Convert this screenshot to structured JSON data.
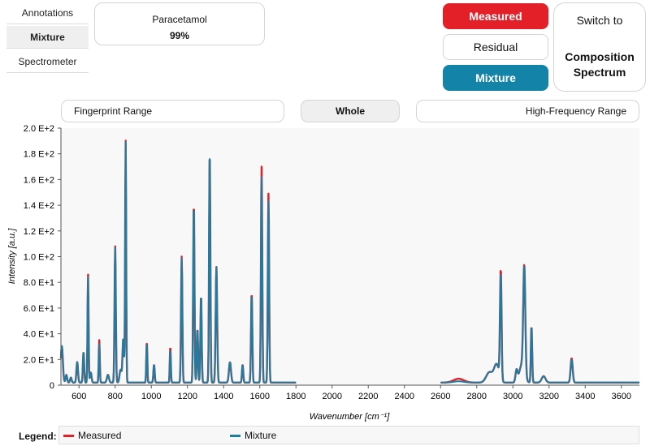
{
  "sidebar": {
    "tabs": [
      {
        "label": "Annotations",
        "active": false
      },
      {
        "label": "Mixture",
        "active": true
      },
      {
        "label": "Spectrometer",
        "active": false
      }
    ]
  },
  "component": {
    "name": "Paracetamol",
    "percent": "99%"
  },
  "toggles": {
    "measured": "Measured",
    "residual": "Residual",
    "mixture": "Mixture"
  },
  "switch_button": {
    "line1": "Switch to",
    "line2": "Composition Spectrum"
  },
  "ranges": {
    "fingerprint": "Fingerprint Range",
    "whole": "Whole",
    "high_frequency": "High-Frequency Range"
  },
  "legend": {
    "title": "Legend:",
    "measured": "Measured",
    "mixture": "Mixture"
  },
  "colors": {
    "measured": "#e32028",
    "mixture": "#1b7ea3",
    "plot_bg": "#f8f8f8"
  },
  "chart_data": {
    "type": "line",
    "xlabel": "Wavenumber [cm⁻¹]",
    "ylabel": "Intensity [a.u.]",
    "xlim": [
      500,
      3700
    ],
    "ylim": [
      0,
      200
    ],
    "x_ticks": [
      600,
      800,
      1000,
      1200,
      1400,
      1600,
      1800,
      2000,
      2200,
      2400,
      2600,
      2800,
      3000,
      3200,
      3400,
      3600
    ],
    "y_ticks": [
      {
        "value": 0,
        "label": "0"
      },
      {
        "value": 20,
        "label": "2.0 E+1"
      },
      {
        "value": 40,
        "label": "4.0 E+1"
      },
      {
        "value": 60,
        "label": "6.0 E+1"
      },
      {
        "value": 80,
        "label": "8.0 E+1"
      },
      {
        "value": 100,
        "label": "1.0 E+2"
      },
      {
        "value": 120,
        "label": "1.2 E+2"
      },
      {
        "value": 140,
        "label": "1.4 E+2"
      },
      {
        "value": 160,
        "label": "1.6 E+2"
      },
      {
        "value": 180,
        "label": "1.8 E+2"
      },
      {
        "value": 200,
        "label": "2.0 E+2"
      }
    ],
    "grid": false,
    "legend_position": "bottom",
    "segments": [
      [
        500,
        1800
      ],
      [
        2600,
        3700
      ]
    ],
    "baseline": 2,
    "series": [
      {
        "name": "Measured",
        "peaks": [
          [
            505,
            28,
            8
          ],
          [
            530,
            6,
            6
          ],
          [
            555,
            4,
            6
          ],
          [
            590,
            16,
            6
          ],
          [
            625,
            24,
            5
          ],
          [
            650,
            84,
            4
          ],
          [
            665,
            8,
            6
          ],
          [
            712,
            33,
            4
          ],
          [
            760,
            6,
            8
          ],
          [
            800,
            106,
            5
          ],
          [
            830,
            10,
            8
          ],
          [
            845,
            34,
            6
          ],
          [
            858,
            188,
            4
          ],
          [
            975,
            32,
            4
          ],
          [
            1015,
            14,
            5
          ],
          [
            1105,
            28,
            4
          ],
          [
            1168,
            98,
            5
          ],
          [
            1235,
            140,
            5
          ],
          [
            1255,
            42,
            5
          ],
          [
            1275,
            68,
            5
          ],
          [
            1323,
            180,
            5
          ],
          [
            1360,
            90,
            6
          ],
          [
            1435,
            16,
            8
          ],
          [
            1505,
            14,
            5
          ],
          [
            1555,
            70,
            5
          ],
          [
            1610,
            168,
            5
          ],
          [
            1648,
            147,
            5
          ],
          [
            2700,
            3,
            40
          ],
          [
            2870,
            8,
            25
          ],
          [
            2910,
            14,
            20
          ],
          [
            2933,
            85,
            6
          ],
          [
            3020,
            9,
            8
          ],
          [
            3050,
            14,
            20
          ],
          [
            3063,
            83,
            8
          ],
          [
            3103,
            44,
            5
          ],
          [
            3170,
            5,
            15
          ],
          [
            3325,
            19,
            8
          ]
        ]
      },
      {
        "name": "Mixture",
        "peaks": [
          [
            505,
            29,
            8
          ],
          [
            530,
            6,
            6
          ],
          [
            555,
            4,
            6
          ],
          [
            590,
            16,
            6
          ],
          [
            625,
            24,
            5
          ],
          [
            650,
            82,
            4
          ],
          [
            665,
            8,
            6
          ],
          [
            712,
            30,
            4
          ],
          [
            760,
            6,
            8
          ],
          [
            800,
            105,
            5
          ],
          [
            830,
            10,
            8
          ],
          [
            845,
            34,
            6
          ],
          [
            858,
            187,
            4
          ],
          [
            975,
            31,
            4
          ],
          [
            1015,
            14,
            5
          ],
          [
            1105,
            26,
            4
          ],
          [
            1168,
            97,
            5
          ],
          [
            1235,
            139,
            5
          ],
          [
            1255,
            42,
            5
          ],
          [
            1275,
            68,
            5
          ],
          [
            1323,
            181,
            5
          ],
          [
            1360,
            90,
            6
          ],
          [
            1435,
            16,
            8
          ],
          [
            1505,
            14,
            5
          ],
          [
            1555,
            69,
            5
          ],
          [
            1610,
            160,
            5
          ],
          [
            1648,
            141,
            5
          ],
          [
            2700,
            1,
            40
          ],
          [
            2870,
            8,
            25
          ],
          [
            2910,
            14,
            20
          ],
          [
            2933,
            82,
            6
          ],
          [
            3020,
            9,
            8
          ],
          [
            3050,
            14,
            20
          ],
          [
            3063,
            82,
            8
          ],
          [
            3103,
            44,
            5
          ],
          [
            3170,
            5,
            15
          ],
          [
            3325,
            18,
            8
          ]
        ]
      }
    ]
  }
}
